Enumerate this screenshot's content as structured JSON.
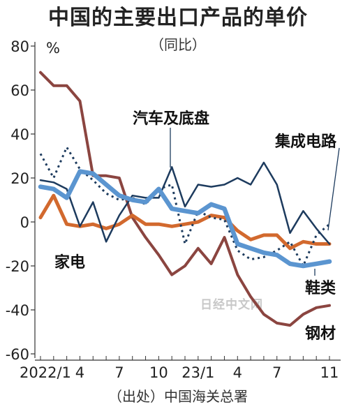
{
  "title": "中国的主要出口产品的单价",
  "subtitle": "（同比）",
  "source": "（出处）中国海关总署",
  "watermark": "日经中文网",
  "chart_data": {
    "type": "line",
    "ylabel": "%",
    "ylim": [
      -60,
      80
    ],
    "yticks": [
      80,
      60,
      40,
      20,
      0,
      -20,
      -40,
      -60
    ],
    "x_count": 23,
    "xtick_labels": [
      {
        "index": 0,
        "label": "2022/1"
      },
      {
        "index": 3,
        "label": "4"
      },
      {
        "index": 6,
        "label": "7"
      },
      {
        "index": 9,
        "label": "10"
      },
      {
        "index": 12,
        "label": "23/1"
      },
      {
        "index": 15,
        "label": "4"
      },
      {
        "index": 18,
        "label": "7"
      },
      {
        "index": 22,
        "label": "11"
      }
    ],
    "grid": false,
    "series": [
      {
        "name": "钢材",
        "color": "#8B4540",
        "width": 4,
        "dash": "",
        "values": [
          68,
          62,
          62,
          55,
          21,
          21,
          20,
          2,
          -7,
          -15,
          -24,
          -20,
          -12,
          -19,
          -7,
          -24,
          -34,
          -42,
          -46,
          -47,
          -42,
          -39,
          -38
        ]
      },
      {
        "name": "家电",
        "color": "#D2692E",
        "width": 5,
        "dash": "",
        "values": [
          2,
          12,
          -1,
          -2,
          -1,
          -3,
          -1,
          3,
          -1,
          -1,
          -2,
          -1,
          0,
          3,
          2,
          -4,
          -8,
          -6,
          -6,
          -12,
          -9,
          -10,
          -10
        ]
      },
      {
        "name": "汽车及底盘",
        "color": "#1D3B5E",
        "width": 2.5,
        "dash": "",
        "values": [
          19,
          18,
          15,
          -2,
          9,
          -9,
          3,
          12,
          11,
          11,
          25,
          7,
          17,
          16,
          17,
          20,
          17,
          27,
          17,
          -5,
          5,
          -3,
          -10
        ]
      },
      {
        "name": "集成电路",
        "color": "#1D3B5E",
        "width": 3,
        "dash": "3,5",
        "values": [
          31,
          20,
          34,
          24,
          19,
          13,
          10,
          11,
          8,
          15,
          17,
          -10,
          5,
          2,
          1,
          -13,
          -17,
          -16,
          -13,
          -9,
          -20,
          -6,
          -1
        ]
      },
      {
        "name": "鞋类",
        "color": "#5B95D0",
        "width": 6.5,
        "dash": "",
        "values": [
          16,
          15,
          11,
          23,
          22,
          17,
          12,
          10,
          9,
          15,
          6,
          5,
          4,
          8,
          6,
          -10,
          -12,
          -14,
          -15,
          -19,
          -20,
          -19,
          -18
        ]
      }
    ]
  }
}
